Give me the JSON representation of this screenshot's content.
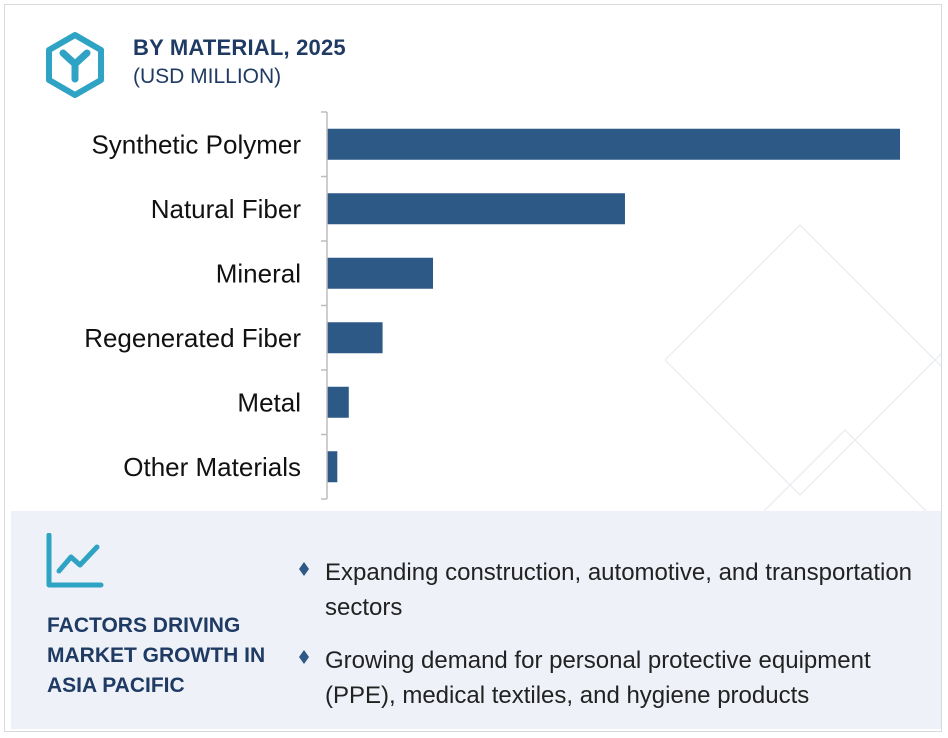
{
  "header": {
    "title": "BY MATERIAL, 2025",
    "subtitle": "(USD MILLION)",
    "logo_icon": "hexagon-y-icon"
  },
  "colors": {
    "bar": "#2d5987",
    "title": "#1f3b63",
    "accent": "#2fa3c4",
    "footer_bg": "#eef1f7"
  },
  "chart_data": {
    "type": "bar",
    "orientation": "horizontal",
    "categories": [
      "Synthetic Polymer",
      "Natural Fiber",
      "Mineral",
      "Regenerated Fiber",
      "Metal",
      "Other Materials"
    ],
    "values": [
      100,
      52,
      18.5,
      9.7,
      3.8,
      1.8
    ],
    "title": "BY MATERIAL, 2025",
    "xlabel": "",
    "ylabel": "",
    "grid": false,
    "legend": "none"
  },
  "footer": {
    "icon": "trend-chart-icon",
    "title": "FACTORS DRIVING MARKET GROWTH IN ASIA PACIFIC",
    "bullet_icon": "diamond-bullet-icon",
    "bullets": [
      "Expanding construction, automotive, and transportation sectors",
      "Growing demand for personal protective equipment (PPE), medical textiles, and hygiene products"
    ]
  }
}
